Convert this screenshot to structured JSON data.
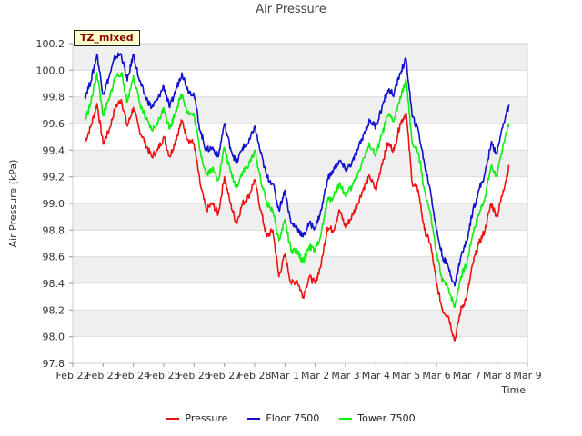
{
  "chart_data": {
    "type": "line",
    "title": "Air Pressure",
    "badge": "TZ_mixed",
    "xlabel": "Time",
    "ylabel": "Air Pressure (kPa)",
    "ylim": [
      97.8,
      100.2
    ],
    "yticks": [
      "97.8",
      "98.0",
      "98.2",
      "98.4",
      "98.6",
      "98.8",
      "99.0",
      "99.2",
      "99.4",
      "99.6",
      "99.8",
      "100.0",
      "100.2"
    ],
    "xticks": [
      "Feb 22",
      "Feb 23",
      "Feb 24",
      "Feb 25",
      "Feb 26",
      "Feb 27",
      "Feb 28",
      "Mar 1",
      "Mar 2",
      "Mar 3",
      "Mar 4",
      "Mar 5",
      "Mar 6",
      "Mar 7",
      "Mar 8",
      "Mar 9"
    ],
    "xlim": [
      0,
      15
    ],
    "grid": true,
    "legend_position": "bottom",
    "series": [
      {
        "name": "Pressure",
        "color": "#ee1111",
        "points": [
          [
            0.4,
            99.46
          ],
          [
            0.6,
            99.58
          ],
          [
            0.8,
            99.75
          ],
          [
            1.0,
            99.45
          ],
          [
            1.2,
            99.55
          ],
          [
            1.4,
            99.72
          ],
          [
            1.6,
            99.78
          ],
          [
            1.8,
            99.58
          ],
          [
            2.0,
            99.72
          ],
          [
            2.2,
            99.55
          ],
          [
            2.4,
            99.45
          ],
          [
            2.6,
            99.35
          ],
          [
            2.8,
            99.4
          ],
          [
            3.0,
            99.5
          ],
          [
            3.2,
            99.35
          ],
          [
            3.4,
            99.48
          ],
          [
            3.6,
            99.62
          ],
          [
            3.8,
            99.48
          ],
          [
            4.0,
            99.45
          ],
          [
            4.2,
            99.15
          ],
          [
            4.4,
            98.95
          ],
          [
            4.6,
            99.0
          ],
          [
            4.8,
            98.92
          ],
          [
            5.0,
            99.2
          ],
          [
            5.2,
            99.0
          ],
          [
            5.4,
            98.85
          ],
          [
            5.6,
            99.0
          ],
          [
            5.8,
            99.05
          ],
          [
            6.0,
            99.18
          ],
          [
            6.2,
            98.95
          ],
          [
            6.4,
            98.75
          ],
          [
            6.6,
            98.8
          ],
          [
            6.8,
            98.45
          ],
          [
            7.0,
            98.62
          ],
          [
            7.2,
            98.4
          ],
          [
            7.4,
            98.42
          ],
          [
            7.6,
            98.3
          ],
          [
            7.8,
            98.45
          ],
          [
            8.0,
            98.4
          ],
          [
            8.2,
            98.55
          ],
          [
            8.4,
            98.82
          ],
          [
            8.6,
            98.8
          ],
          [
            8.8,
            98.95
          ],
          [
            9.0,
            98.82
          ],
          [
            9.2,
            98.9
          ],
          [
            9.4,
            99.0
          ],
          [
            9.6,
            99.12
          ],
          [
            9.8,
            99.2
          ],
          [
            10.0,
            99.1
          ],
          [
            10.2,
            99.3
          ],
          [
            10.4,
            99.45
          ],
          [
            10.6,
            99.4
          ],
          [
            10.8,
            99.6
          ],
          [
            11.0,
            99.68
          ],
          [
            11.2,
            99.15
          ],
          [
            11.4,
            99.1
          ],
          [
            11.6,
            98.8
          ],
          [
            11.8,
            98.7
          ],
          [
            12.0,
            98.4
          ],
          [
            12.2,
            98.2
          ],
          [
            12.4,
            98.15
          ],
          [
            12.6,
            97.97
          ],
          [
            12.8,
            98.2
          ],
          [
            13.0,
            98.3
          ],
          [
            13.2,
            98.55
          ],
          [
            13.4,
            98.7
          ],
          [
            13.6,
            98.8
          ],
          [
            13.8,
            99.0
          ],
          [
            14.0,
            98.9
          ],
          [
            14.2,
            99.1
          ],
          [
            14.4,
            99.28
          ]
        ]
      },
      {
        "name": "Floor 7500",
        "color": "#1111cc",
        "points": [
          [
            0.4,
            99.8
          ],
          [
            0.6,
            99.92
          ],
          [
            0.8,
            100.12
          ],
          [
            1.0,
            99.82
          ],
          [
            1.2,
            99.95
          ],
          [
            1.4,
            100.1
          ],
          [
            1.6,
            100.12
          ],
          [
            1.8,
            99.92
          ],
          [
            2.0,
            100.12
          ],
          [
            2.2,
            99.92
          ],
          [
            2.4,
            99.8
          ],
          [
            2.6,
            99.72
          ],
          [
            2.8,
            99.78
          ],
          [
            3.0,
            99.88
          ],
          [
            3.2,
            99.72
          ],
          [
            3.4,
            99.85
          ],
          [
            3.6,
            99.98
          ],
          [
            3.8,
            99.85
          ],
          [
            4.0,
            99.82
          ],
          [
            4.2,
            99.55
          ],
          [
            4.4,
            99.4
          ],
          [
            4.6,
            99.42
          ],
          [
            4.8,
            99.35
          ],
          [
            5.0,
            99.6
          ],
          [
            5.2,
            99.42
          ],
          [
            5.4,
            99.3
          ],
          [
            5.6,
            99.42
          ],
          [
            5.8,
            99.45
          ],
          [
            6.0,
            99.58
          ],
          [
            6.2,
            99.38
          ],
          [
            6.4,
            99.2
          ],
          [
            6.6,
            99.15
          ],
          [
            6.8,
            98.95
          ],
          [
            7.0,
            99.1
          ],
          [
            7.2,
            98.85
          ],
          [
            7.4,
            98.82
          ],
          [
            7.6,
            98.75
          ],
          [
            7.8,
            98.85
          ],
          [
            8.0,
            98.82
          ],
          [
            8.2,
            98.95
          ],
          [
            8.4,
            99.18
          ],
          [
            8.6,
            99.25
          ],
          [
            8.8,
            99.32
          ],
          [
            9.0,
            99.25
          ],
          [
            9.2,
            99.3
          ],
          [
            9.4,
            99.4
          ],
          [
            9.6,
            99.52
          ],
          [
            9.8,
            99.62
          ],
          [
            10.0,
            99.58
          ],
          [
            10.2,
            99.72
          ],
          [
            10.4,
            99.85
          ],
          [
            10.6,
            99.82
          ],
          [
            10.8,
            99.98
          ],
          [
            11.0,
            100.08
          ],
          [
            11.2,
            99.65
          ],
          [
            11.4,
            99.55
          ],
          [
            11.6,
            99.3
          ],
          [
            11.8,
            99.1
          ],
          [
            12.0,
            98.8
          ],
          [
            12.2,
            98.6
          ],
          [
            12.4,
            98.52
          ],
          [
            12.6,
            98.38
          ],
          [
            12.8,
            98.6
          ],
          [
            13.0,
            98.72
          ],
          [
            13.2,
            98.95
          ],
          [
            13.4,
            99.1
          ],
          [
            13.6,
            99.22
          ],
          [
            13.8,
            99.45
          ],
          [
            14.0,
            99.38
          ],
          [
            14.2,
            99.6
          ],
          [
            14.4,
            99.74
          ]
        ]
      },
      {
        "name": "Tower 7500",
        "color": "#11ee11",
        "points": [
          [
            0.4,
            99.62
          ],
          [
            0.6,
            99.76
          ],
          [
            0.8,
            99.98
          ],
          [
            1.0,
            99.66
          ],
          [
            1.2,
            99.78
          ],
          [
            1.4,
            99.95
          ],
          [
            1.6,
            99.98
          ],
          [
            1.8,
            99.76
          ],
          [
            2.0,
            99.96
          ],
          [
            2.2,
            99.76
          ],
          [
            2.4,
            99.64
          ],
          [
            2.6,
            99.55
          ],
          [
            2.8,
            99.6
          ],
          [
            3.0,
            99.72
          ],
          [
            3.2,
            99.56
          ],
          [
            3.4,
            99.7
          ],
          [
            3.6,
            99.82
          ],
          [
            3.8,
            99.68
          ],
          [
            4.0,
            99.66
          ],
          [
            4.2,
            99.4
          ],
          [
            4.4,
            99.22
          ],
          [
            4.6,
            99.26
          ],
          [
            4.8,
            99.18
          ],
          [
            5.0,
            99.42
          ],
          [
            5.2,
            99.24
          ],
          [
            5.4,
            99.12
          ],
          [
            5.6,
            99.24
          ],
          [
            5.8,
            99.28
          ],
          [
            6.0,
            99.4
          ],
          [
            6.2,
            99.18
          ],
          [
            6.4,
            99.0
          ],
          [
            6.6,
            98.95
          ],
          [
            6.8,
            98.72
          ],
          [
            7.0,
            98.88
          ],
          [
            7.2,
            98.64
          ],
          [
            7.4,
            98.64
          ],
          [
            7.6,
            98.56
          ],
          [
            7.8,
            98.68
          ],
          [
            8.0,
            98.64
          ],
          [
            8.2,
            98.78
          ],
          [
            8.4,
            99.02
          ],
          [
            8.6,
            99.05
          ],
          [
            8.8,
            99.15
          ],
          [
            9.0,
            99.06
          ],
          [
            9.2,
            99.12
          ],
          [
            9.4,
            99.22
          ],
          [
            9.6,
            99.34
          ],
          [
            9.8,
            99.44
          ],
          [
            10.0,
            99.36
          ],
          [
            10.2,
            99.52
          ],
          [
            10.4,
            99.66
          ],
          [
            10.6,
            99.62
          ],
          [
            10.8,
            99.8
          ],
          [
            11.0,
            99.92
          ],
          [
            11.2,
            99.45
          ],
          [
            11.4,
            99.38
          ],
          [
            11.6,
            99.1
          ],
          [
            11.8,
            98.92
          ],
          [
            12.0,
            98.62
          ],
          [
            12.2,
            98.42
          ],
          [
            12.4,
            98.36
          ],
          [
            12.6,
            98.22
          ],
          [
            12.8,
            98.45
          ],
          [
            13.0,
            98.55
          ],
          [
            13.2,
            98.78
          ],
          [
            13.4,
            98.92
          ],
          [
            13.6,
            99.05
          ],
          [
            13.8,
            99.28
          ],
          [
            14.0,
            99.2
          ],
          [
            14.2,
            99.45
          ],
          [
            14.4,
            99.6
          ]
        ]
      }
    ]
  }
}
